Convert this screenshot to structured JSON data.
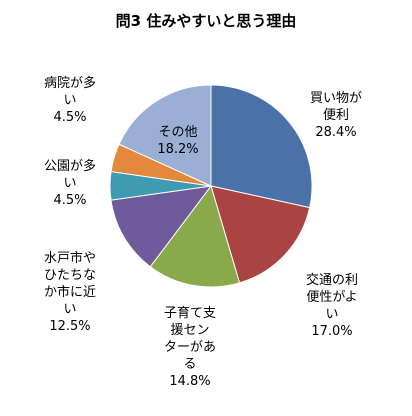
{
  "chart_data": {
    "type": "pie",
    "title": "問3 住みやすいと思う理由",
    "slices": [
      {
        "name": "買い物が便利",
        "label_lines": [
          "買い物が",
          "便利"
        ],
        "value": 28.4,
        "display": "28.4%",
        "color": "#4a72a9"
      },
      {
        "name": "交通の利便性がよい",
        "label_lines": [
          "交通の利",
          "便性がよ",
          "い"
        ],
        "value": 17.0,
        "display": "17.0%",
        "color": "#a94442"
      },
      {
        "name": "子育て支援センターがある",
        "label_lines": [
          "子育て支",
          "援セン",
          "ターがあ",
          "る"
        ],
        "value": 14.8,
        "display": "14.8%",
        "color": "#89a94a"
      },
      {
        "name": "水戸市やひたちなか市に近い",
        "label_lines": [
          "水戸市や",
          "ひたちな",
          "か市に近",
          "い"
        ],
        "value": 12.5,
        "display": "12.5%",
        "color": "#6f5a9b"
      },
      {
        "name": "公園が多い",
        "label_lines": [
          "公園が多",
          "い"
        ],
        "value": 4.5,
        "display": "4.5%",
        "color": "#3e9bb2"
      },
      {
        "name": "病院が多い",
        "label_lines": [
          "病院が多",
          "い"
        ],
        "value": 4.5,
        "display": "4.5%",
        "color": "#e3883c"
      },
      {
        "name": "その他",
        "label_lines": [
          "その他"
        ],
        "value": 18.2,
        "display": "18.2%",
        "color": "#9aafd3"
      }
    ]
  }
}
